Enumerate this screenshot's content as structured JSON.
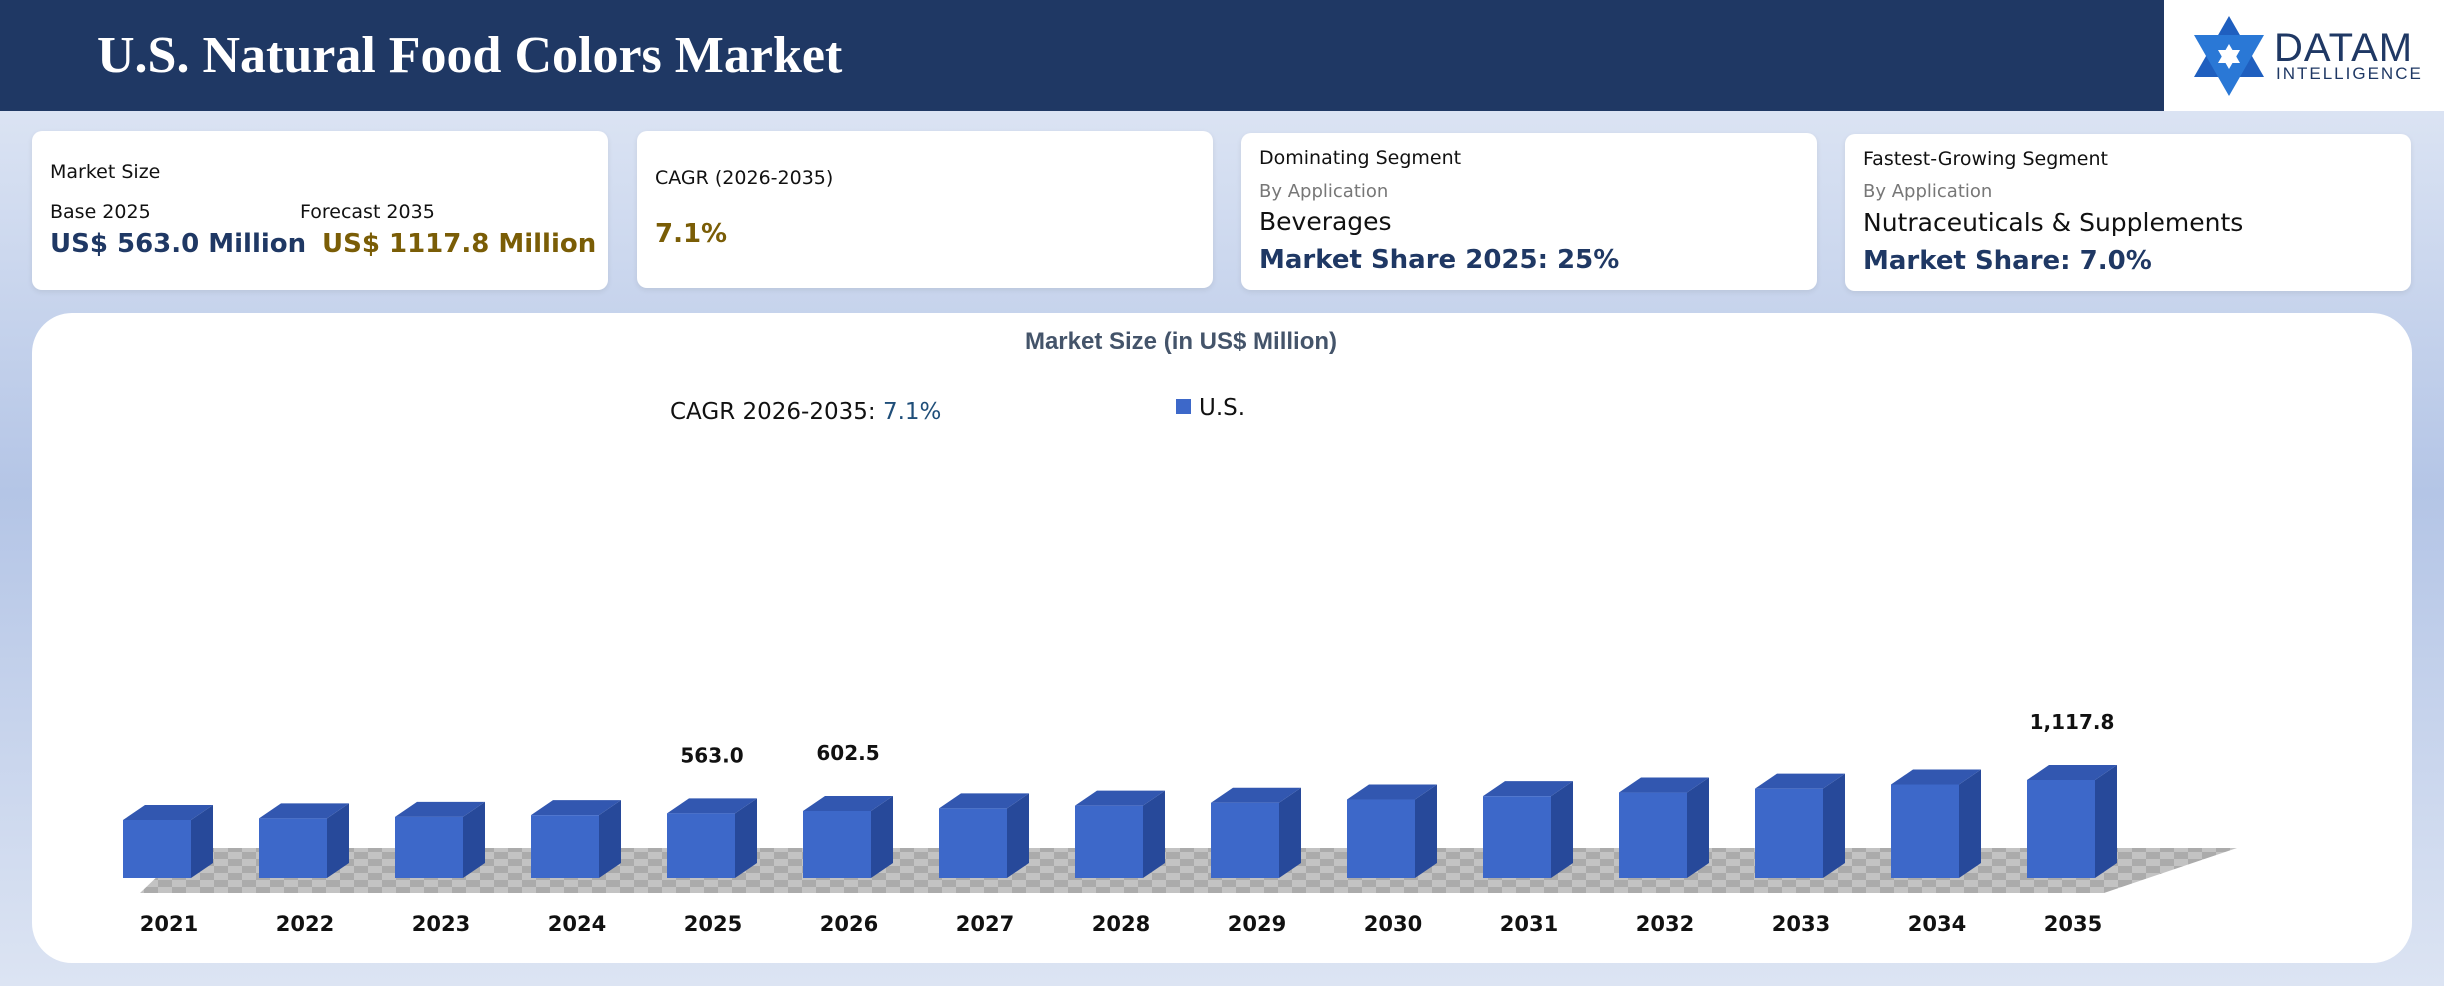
{
  "header": {
    "title": "U.S. Natural Food Colors Market",
    "logo_name": "DATAM",
    "logo_sub": "INTELLIGENCE",
    "bg_color": "#1f3864"
  },
  "cards": {
    "market_size": {
      "label": "Market Size",
      "base_label": "Base 2025",
      "base_value": "US$ 563.0 Million",
      "forecast_label": "Forecast 2035",
      "forecast_value": "US$ 1117.8 Million"
    },
    "cagr": {
      "label": "CAGR (2026-2035)",
      "value": "7.1%"
    },
    "dominating": {
      "label": "Dominating Segment",
      "by": "By Application",
      "segment": "Beverages",
      "share": "Market Share 2025: 25%"
    },
    "fastest": {
      "label": "Fastest-Growing Segment",
      "by": "By Application",
      "segment": "Nutraceuticals & Supplements",
      "share": "Market Share: 7.0%"
    }
  },
  "chart_data": {
    "type": "bar",
    "title": "Market Size (in US$ Million)",
    "annotation_label": "CAGR 2026-2035: ",
    "annotation_value": "7.1%",
    "categories": [
      "2021",
      "2022",
      "2023",
      "2024",
      "2025",
      "2026",
      "2027",
      "2028",
      "2029",
      "2030",
      "2031",
      "2032",
      "2033",
      "2034",
      "2035"
    ],
    "series": [
      {
        "name": "U.S.",
        "color": "#3d68c9",
        "values": [
          452,
          480,
          505,
          533,
          563.0,
          602.5,
          645,
          691,
          740,
          793,
          849,
          909,
          974,
          1043,
          1117.8
        ]
      }
    ],
    "data_labels": [
      "",
      "",
      "",
      "",
      "563.0",
      "602.5",
      "",
      "",
      "",
      "",
      "",
      "",
      "",
      "",
      "1,117.8"
    ],
    "legend_position": "top-center",
    "grid": false
  }
}
